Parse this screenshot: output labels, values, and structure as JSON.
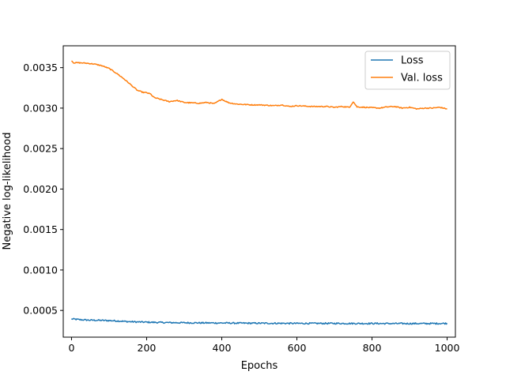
{
  "chart_data": {
    "type": "line",
    "title": "",
    "xlabel": "Epochs",
    "ylabel": "Negative log-likelihood",
    "xlim": [
      -22,
      1022
    ],
    "ylim": [
      0.00017,
      0.00377
    ],
    "xticks": [
      0,
      200,
      400,
      600,
      800,
      1000
    ],
    "xtick_labels": [
      "0",
      "200",
      "400",
      "600",
      "800",
      "1000"
    ],
    "yticks": [
      0.0005,
      0.001,
      0.0015,
      0.002,
      0.0025,
      0.003,
      0.0035
    ],
    "ytick_labels": [
      "0.0005",
      "0.0010",
      "0.0015",
      "0.0020",
      "0.0025",
      "0.0030",
      "0.0035"
    ],
    "grid": false,
    "legend": "top-right",
    "series": [
      {
        "name": "Loss",
        "color": "#1f77b4",
        "x": [
          0,
          25,
          50,
          75,
          100,
          125,
          150,
          175,
          200,
          250,
          300,
          350,
          400,
          450,
          500,
          550,
          600,
          650,
          700,
          750,
          800,
          850,
          900,
          950,
          1000
        ],
        "y": [
          0.000395,
          0.000385,
          0.00038,
          0.000378,
          0.000375,
          0.00037,
          0.000362,
          0.000358,
          0.000355,
          0.00035,
          0.000348,
          0.000346,
          0.000345,
          0.000343,
          0.000342,
          0.000341,
          0.00034,
          0.00034,
          0.00034,
          0.000339,
          0.000339,
          0.000338,
          0.000338,
          0.000338,
          0.00034
        ]
      },
      {
        "name": "Val. loss",
        "color": "#ff7f0e",
        "x": [
          0,
          5,
          20,
          40,
          60,
          80,
          100,
          120,
          140,
          160,
          175,
          190,
          200,
          210,
          220,
          240,
          260,
          280,
          300,
          320,
          340,
          360,
          380,
          400,
          410,
          420,
          440,
          460,
          480,
          500,
          520,
          540,
          560,
          580,
          600,
          620,
          640,
          660,
          680,
          700,
          720,
          740,
          750,
          760,
          780,
          800,
          820,
          840,
          860,
          880,
          900,
          920,
          940,
          960,
          980,
          1000
        ],
        "y": [
          0.00359,
          0.00356,
          0.00356,
          0.003555,
          0.003545,
          0.003525,
          0.00349,
          0.00343,
          0.00336,
          0.00328,
          0.00322,
          0.003195,
          0.00319,
          0.003175,
          0.00313,
          0.003105,
          0.00308,
          0.003095,
          0.00307,
          0.003065,
          0.00306,
          0.00307,
          0.003055,
          0.00311,
          0.003085,
          0.003065,
          0.00305,
          0.003045,
          0.00304,
          0.00304,
          0.003035,
          0.00303,
          0.00304,
          0.00302,
          0.00303,
          0.003025,
          0.00302,
          0.00302,
          0.00302,
          0.00301,
          0.00302,
          0.00301,
          0.00308,
          0.003015,
          0.00301,
          0.003005,
          0.003,
          0.003015,
          0.00302,
          0.003,
          0.00301,
          0.00299,
          0.003,
          0.003,
          0.00301,
          0.00299
        ]
      }
    ]
  }
}
